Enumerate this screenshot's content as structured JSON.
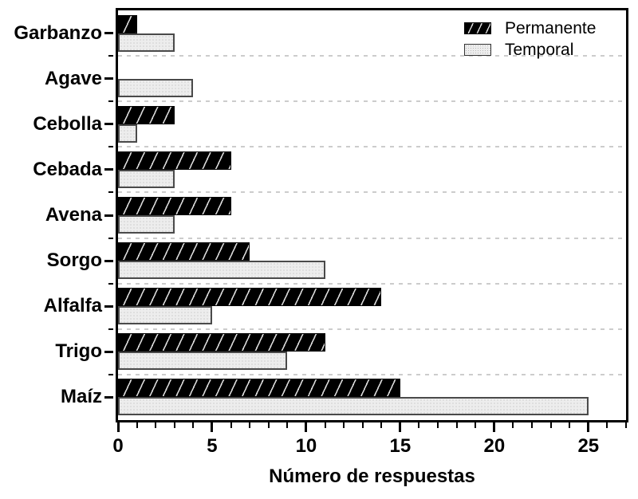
{
  "chart_data": {
    "type": "bar",
    "orientation": "horizontal",
    "title": "",
    "xlabel": "Número de respuestas",
    "ylabel": "",
    "categories": [
      "Garbanzo",
      "Agave",
      "Cebolla",
      "Cebada",
      "Avena",
      "Sorgo",
      "Alfalfa",
      "Trigo",
      "Maíz"
    ],
    "series": [
      {
        "name": "Permanente",
        "values": [
          1,
          0,
          3,
          6,
          6,
          7,
          14,
          11,
          15
        ],
        "fill": "#000000",
        "pattern": "diagonal-hatch"
      },
      {
        "name": "Temporal",
        "values": [
          3,
          4,
          1,
          3,
          3,
          11,
          5,
          9,
          25
        ],
        "fill": "#ededed",
        "pattern": "dot-grid"
      }
    ],
    "xlim": [
      0,
      27
    ],
    "xticks": [
      0,
      5,
      10,
      15,
      20,
      25
    ],
    "minor_tick_step": 1,
    "grid": "dashed horizontal lines between category groups",
    "legend_position": "top-right-inside",
    "colors": {
      "frame": "#000000",
      "gridline": "#cccccc",
      "permanente_fill": "#000000",
      "temporal_fill": "#ededed",
      "temporal_border": "#4a4a4a"
    }
  }
}
